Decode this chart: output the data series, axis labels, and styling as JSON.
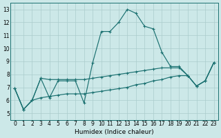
{
  "background_color": "#cce8e8",
  "grid_color": "#aacccc",
  "line_color": "#1a7070",
  "xlabel": "Humidex (Indice chaleur)",
  "xlim": [
    -0.5,
    23.5
  ],
  "ylim": [
    4.5,
    13.5
  ],
  "xticks": [
    0,
    1,
    2,
    3,
    4,
    5,
    6,
    7,
    8,
    9,
    10,
    11,
    12,
    13,
    14,
    15,
    16,
    17,
    18,
    19,
    20,
    21,
    22,
    23
  ],
  "yticks": [
    5,
    6,
    7,
    8,
    9,
    10,
    11,
    12,
    13
  ],
  "series1": [
    6.9,
    5.3,
    6.0,
    7.7,
    6.2,
    7.5,
    7.5,
    7.5,
    5.8,
    8.9,
    11.3,
    11.3,
    12.0,
    13.0,
    12.7,
    11.7,
    11.5,
    9.7,
    8.6,
    8.6,
    7.9,
    7.1,
    7.5,
    8.9
  ],
  "series2": [
    6.9,
    5.3,
    6.0,
    7.7,
    7.6,
    7.6,
    7.6,
    7.6,
    7.6,
    7.7,
    7.8,
    7.9,
    8.0,
    8.1,
    8.2,
    8.3,
    8.4,
    8.5,
    8.5,
    8.5,
    7.9,
    7.1,
    7.5,
    8.9
  ],
  "series3": [
    6.9,
    5.3,
    6.0,
    6.2,
    6.3,
    6.4,
    6.5,
    6.5,
    6.5,
    6.6,
    6.7,
    6.8,
    6.9,
    7.0,
    7.2,
    7.3,
    7.5,
    7.6,
    7.8,
    7.9,
    7.9,
    7.1,
    7.5,
    8.9
  ]
}
